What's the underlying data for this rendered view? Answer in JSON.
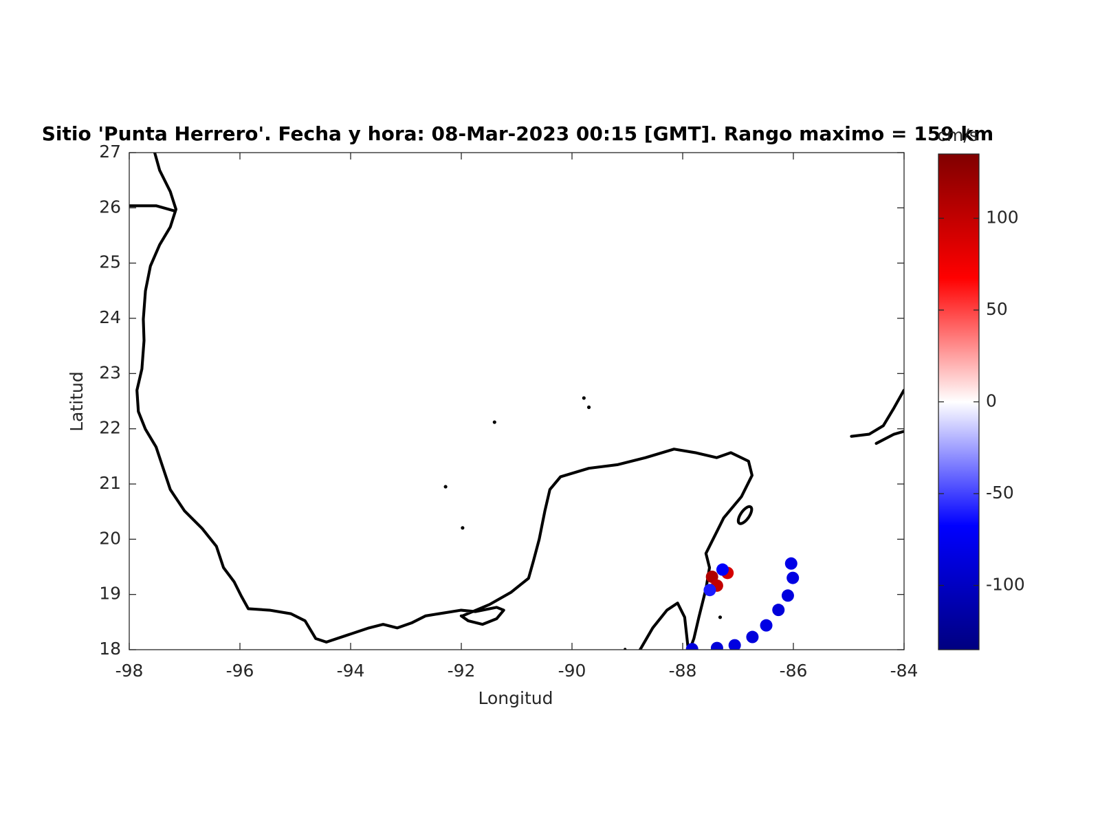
{
  "chart_data": {
    "type": "map",
    "title": "Sitio 'Punta Herrero'. Fecha y hora: 08-Mar-2023 00:15 [GMT]. Rango maximo = 159 km",
    "xlabel": "Longitud",
    "ylabel": "Latitud",
    "xlim": [
      -98,
      -84
    ],
    "ylim": [
      18,
      27
    ],
    "xticks": [
      -98,
      -96,
      -94,
      -92,
      -90,
      -88,
      -86,
      -84
    ],
    "yticks": [
      18,
      19,
      20,
      21,
      22,
      23,
      24,
      25,
      26,
      27
    ],
    "points": {
      "x": [
        -87.83,
        -87.38,
        -87.06,
        -86.74,
        -86.49,
        -86.27,
        -86.1,
        -86.01,
        -86.04,
        -87.47,
        -87.38,
        -87.19,
        -87.28,
        -87.51
      ],
      "y": [
        18.01,
        18.03,
        18.08,
        18.23,
        18.44,
        18.72,
        18.98,
        19.3,
        19.56,
        19.32,
        19.16,
        19.39,
        19.45,
        19.08
      ],
      "values": [
        -85,
        -88,
        -84,
        -86,
        -82,
        -87,
        -85,
        -83,
        -80,
        110,
        100,
        90,
        -70,
        -60
      ]
    },
    "colorbar": {
      "label": "cm/s",
      "clim": [
        -135,
        135
      ],
      "ticks": [
        -100,
        -50,
        0,
        50,
        100
      ]
    }
  }
}
